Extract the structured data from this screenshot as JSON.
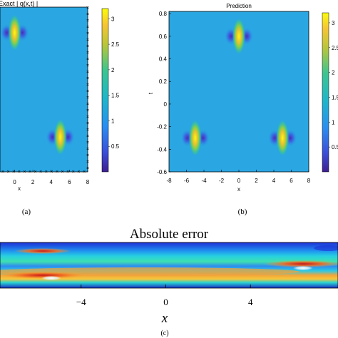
{
  "chart_data": [
    {
      "id": "a",
      "type": "heatmap",
      "title": "Exact  | q(x,t) |",
      "xlabel": "x",
      "ylabel": "",
      "xlim": [
        -1.6,
        8
      ],
      "ylim": [
        -0.6,
        0.82
      ],
      "x_ticks": [
        "0",
        "2",
        "4",
        "6",
        "8"
      ],
      "colorbar_ticks": [
        "3",
        "2.5",
        "2",
        "1.5",
        "1",
        "0.5"
      ],
      "colorbar_range": [
        0,
        3.2
      ],
      "peaks": [
        {
          "x": 0,
          "t": 0.6,
          "value": 3.0
        },
        {
          "x": 5,
          "t": -0.3,
          "value": 3.0
        }
      ],
      "training_marker": "×",
      "caption": "(a)"
    },
    {
      "id": "b",
      "type": "heatmap",
      "title": "Prediction",
      "xlabel": "x",
      "ylabel": "t",
      "xlim": [
        -8,
        8
      ],
      "ylim": [
        -0.6,
        0.82
      ],
      "x_ticks": [
        "-8",
        "-6",
        "-4",
        "-2",
        "0",
        "2",
        "4",
        "6",
        "8"
      ],
      "y_ticks": [
        "0.8",
        "0.6",
        "0.4",
        "0.2",
        "0",
        "-0.2",
        "-0.4",
        "-0.6"
      ],
      "colorbar_ticks": [
        "3",
        "2.5",
        "2",
        "1.5",
        "1",
        "0.5"
      ],
      "colorbar_range": [
        0,
        3.2
      ],
      "peaks": [
        {
          "x": 0,
          "t": 0.6,
          "value": 3.0
        },
        {
          "x": -5,
          "t": -0.3,
          "value": 3.0
        },
        {
          "x": 5,
          "t": -0.3,
          "value": 3.0
        }
      ],
      "caption": "(b)"
    },
    {
      "id": "c",
      "type": "heatmap",
      "title": "Absolute error",
      "xlabel": "x",
      "ylabel": "",
      "xlim": [
        -8,
        8
      ],
      "x_ticks": [
        "−4",
        "0",
        "4"
      ],
      "x_tick_values": [
        -4,
        0,
        4
      ],
      "caption": "(c)"
    }
  ]
}
